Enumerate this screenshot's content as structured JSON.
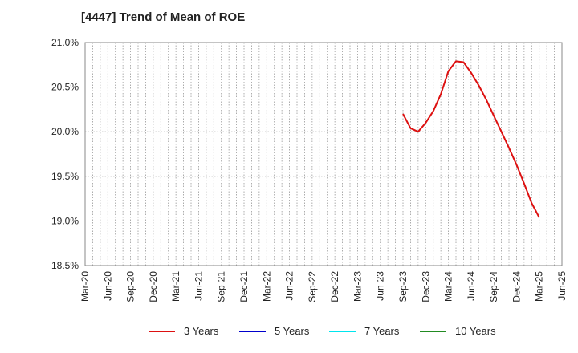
{
  "chart_data": {
    "type": "line",
    "title": "[4447]  Trend of Mean of ROE",
    "y_ticks": [
      "18.5%",
      "19.0%",
      "19.5%",
      "20.0%",
      "20.5%",
      "21.0%"
    ],
    "ylim": [
      18.5,
      21.0
    ],
    "x_ticks": [
      "Mar-20",
      "Jun-20",
      "Sep-20",
      "Dec-20",
      "Mar-21",
      "Jun-21",
      "Sep-21",
      "Dec-21",
      "Mar-22",
      "Jun-22",
      "Sep-22",
      "Dec-22",
      "Mar-23",
      "Jun-23",
      "Sep-23",
      "Dec-23",
      "Mar-24",
      "Jun-24",
      "Sep-24",
      "Dec-24",
      "Mar-25",
      "Jun-25"
    ],
    "grid": true,
    "legend_position": "bottom",
    "series": [
      {
        "name": "3 Years",
        "color": "#dd1111",
        "x": [
          "Sep-23",
          "Oct-23",
          "Nov-23",
          "Dec-23",
          "Jan-24",
          "Feb-24",
          "Mar-24",
          "Apr-24",
          "May-24",
          "Jun-24",
          "Jul-24",
          "Aug-24",
          "Sep-24",
          "Oct-24",
          "Nov-24",
          "Dec-24",
          "Jan-25",
          "Feb-25",
          "Mar-25"
        ],
        "values": [
          20.2,
          20.04,
          20.0,
          20.1,
          20.23,
          20.42,
          20.68,
          20.79,
          20.78,
          20.66,
          20.52,
          20.36,
          20.18,
          20.0,
          19.82,
          19.63,
          19.42,
          19.2,
          19.04
        ]
      },
      {
        "name": "5 Years",
        "color": "#0000cc",
        "x": [],
        "values": []
      },
      {
        "name": "7 Years",
        "color": "#00e5ee",
        "x": [],
        "values": []
      },
      {
        "name": "10 Years",
        "color": "#228b22",
        "x": [],
        "values": []
      }
    ]
  }
}
